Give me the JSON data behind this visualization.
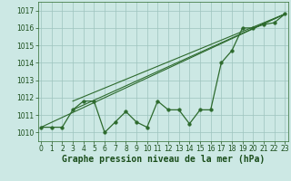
{
  "title": "Graphe pression niveau de la mer (hPa)",
  "x_values": [
    0,
    1,
    2,
    3,
    4,
    5,
    6,
    7,
    8,
    9,
    10,
    11,
    12,
    13,
    14,
    15,
    16,
    17,
    18,
    19,
    20,
    21,
    22,
    23
  ],
  "pressure_data": [
    1010.3,
    1010.3,
    1010.3,
    1011.3,
    1011.8,
    1011.8,
    1010.0,
    1010.6,
    1011.2,
    1010.6,
    1010.3,
    1011.8,
    1011.3,
    1011.3,
    1010.5,
    1011.3,
    1011.3,
    1014.0,
    1014.7,
    1016.0,
    1016.0,
    1016.2,
    1016.3,
    1016.8
  ],
  "trend_line1_x": [
    0,
    23
  ],
  "trend_line1_y": [
    1010.3,
    1016.8
  ],
  "trend_line2_x": [
    3,
    23
  ],
  "trend_line2_y": [
    1011.8,
    1016.8
  ],
  "trend_line3_x": [
    3,
    23
  ],
  "trend_line3_y": [
    1011.3,
    1016.8
  ],
  "ylim": [
    1009.5,
    1017.5
  ],
  "xlim": [
    -0.3,
    23.3
  ],
  "yticks": [
    1010,
    1011,
    1012,
    1013,
    1014,
    1015,
    1016,
    1017
  ],
  "xticks": [
    0,
    1,
    2,
    3,
    4,
    5,
    6,
    7,
    8,
    9,
    10,
    11,
    12,
    13,
    14,
    15,
    16,
    17,
    18,
    19,
    20,
    21,
    22,
    23
  ],
  "line_color": "#2d6a2d",
  "bg_color": "#cce8e4",
  "grid_color": "#9dc4be",
  "text_color": "#1a4d1a",
  "title_fontsize": 7.0,
  "tick_fontsize": 5.5,
  "marker_size": 2.5,
  "linewidth": 0.9
}
